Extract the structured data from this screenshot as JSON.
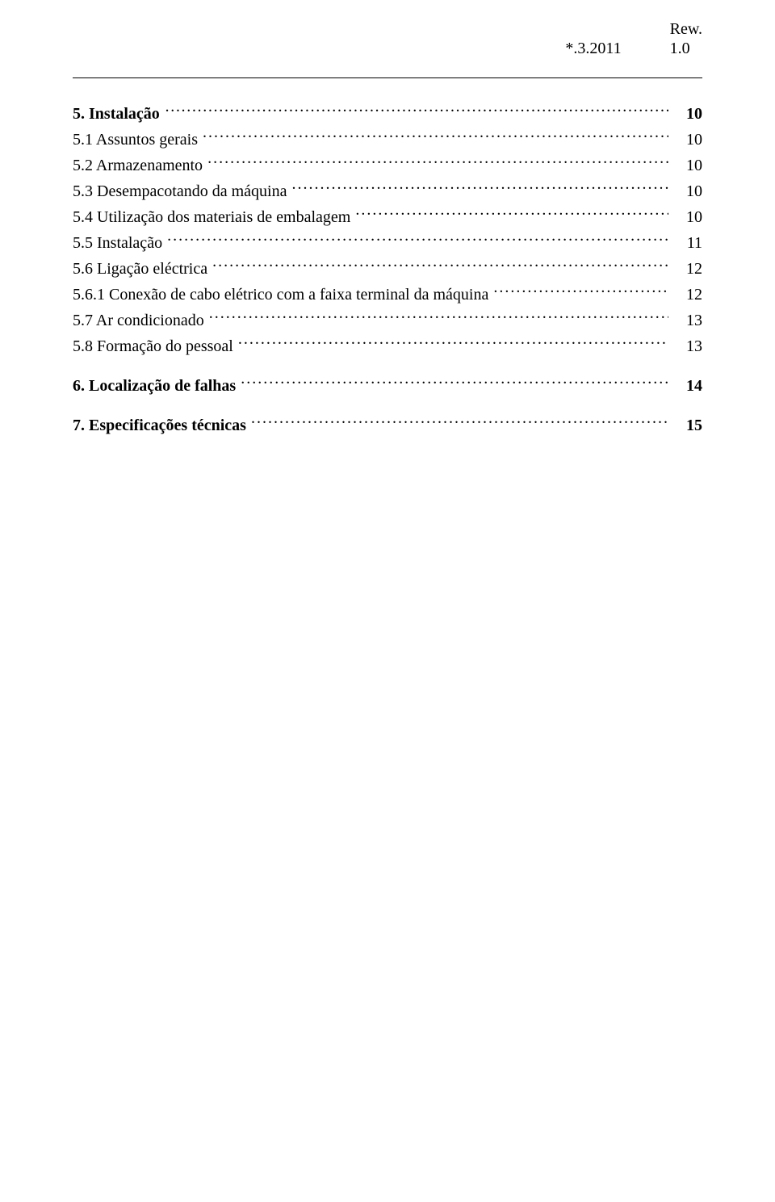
{
  "header": {
    "date": "*.3.2011",
    "rev_label": "Rew.",
    "rev_value": "1.0"
  },
  "toc": [
    {
      "label": "5.  Instalação ",
      "page": "10",
      "bold": true,
      "leader": "big-dots"
    },
    {
      "label": "5.1 Assuntos gerais  ",
      "page": "10",
      "bold": false,
      "leader": "dots"
    },
    {
      "label": "5.2 Armazenamento ",
      "page": "10",
      "bold": false,
      "leader": "dots"
    },
    {
      "label": "5.3 Desempacotando  da máquina ",
      "page": "10",
      "bold": false,
      "leader": "dots"
    },
    {
      "label": "5.4 Utilização dos materiais de embalagem ",
      "page": "10",
      "bold": false,
      "leader": "dots"
    },
    {
      "label": "5.5 Instalação ",
      "page": "11",
      "bold": false,
      "leader": "dots"
    },
    {
      "label": "5.6  Ligação eléctrica ",
      "page": "12",
      "bold": false,
      "leader": "dots"
    },
    {
      "label": "5.6.1 Conexão de cabo elétrico com a faixa terminal da máquina ",
      "page": "12",
      "bold": false,
      "leader": "dots"
    },
    {
      "label": "5.7 Ar condicionado ",
      "page": "13",
      "bold": false,
      "leader": "dots"
    },
    {
      "label": "5.8 Formação do pessoal ",
      "page": "13",
      "bold": false,
      "leader": "dots"
    },
    {
      "spacer": true,
      "label": "",
      "page": "",
      "bold": false,
      "leader": ""
    },
    {
      "label": "6.  Localização de falhas ",
      "page": "14",
      "bold": true,
      "leader": "dots"
    },
    {
      "spacer": true,
      "label": "",
      "page": "",
      "bold": false,
      "leader": ""
    },
    {
      "label": "7.  Especificações técnicas ",
      "page": "15",
      "bold": true,
      "leader": "dots"
    }
  ]
}
